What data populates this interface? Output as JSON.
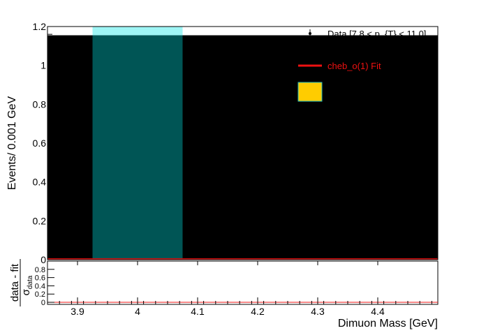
{
  "chart_data": [
    {
      "type": "area",
      "ylabel": "Events/ 0.001 GeV",
      "xlim": [
        3.85,
        4.5
      ],
      "ylim": [
        0,
        1.2
      ],
      "yticks": [
        0,
        0.2,
        0.4,
        0.6,
        0.8,
        1,
        1.2
      ],
      "ytick_labels": [
        "0",
        "0.2",
        "0.4",
        "0.6",
        "0.8",
        "1",
        "1.2"
      ],
      "fill_level": 1.155,
      "fill_color": "#000000",
      "band": {
        "x": [
          3.925,
          4.075
        ],
        "color_top": "#9ff5f5",
        "color_fill": "#005555"
      },
      "fit_color": "#dd1111",
      "legend": [
        {
          "label": "Data [7.8 < p_{T} < 11.0]",
          "kind": "data-marker",
          "color": "#000000"
        },
        {
          "label": "cheb_o(1) Fit",
          "kind": "line",
          "color": "#ee1111"
        },
        {
          "label": "",
          "kind": "box",
          "color": "#ffcc00",
          "edge": "#22bbbb"
        }
      ],
      "legend_placement": "top-right"
    },
    {
      "type": "scatter",
      "ylabel_num": "data - fit",
      "ylabel_den": "σ",
      "ylabel_den_sub": "data",
      "xlabel": "Dimuon Mass [GeV]",
      "xlim": [
        3.85,
        4.5
      ],
      "ylim": [
        -0.05,
        1.0
      ],
      "xticks": [
        3.9,
        4,
        4.1,
        4.2,
        4.3,
        4.4
      ],
      "xtick_labels": [
        "3.9",
        "4",
        "4.1",
        "4.2",
        "4.3",
        "4.4"
      ],
      "yticks": [
        0,
        0.2,
        0.4,
        0.6,
        0.8
      ],
      "ytick_labels": [
        "0",
        "0.2",
        "0.4",
        "0.6",
        "0.8"
      ],
      "reference_line": 0,
      "reference_color": "#ee1111"
    }
  ]
}
